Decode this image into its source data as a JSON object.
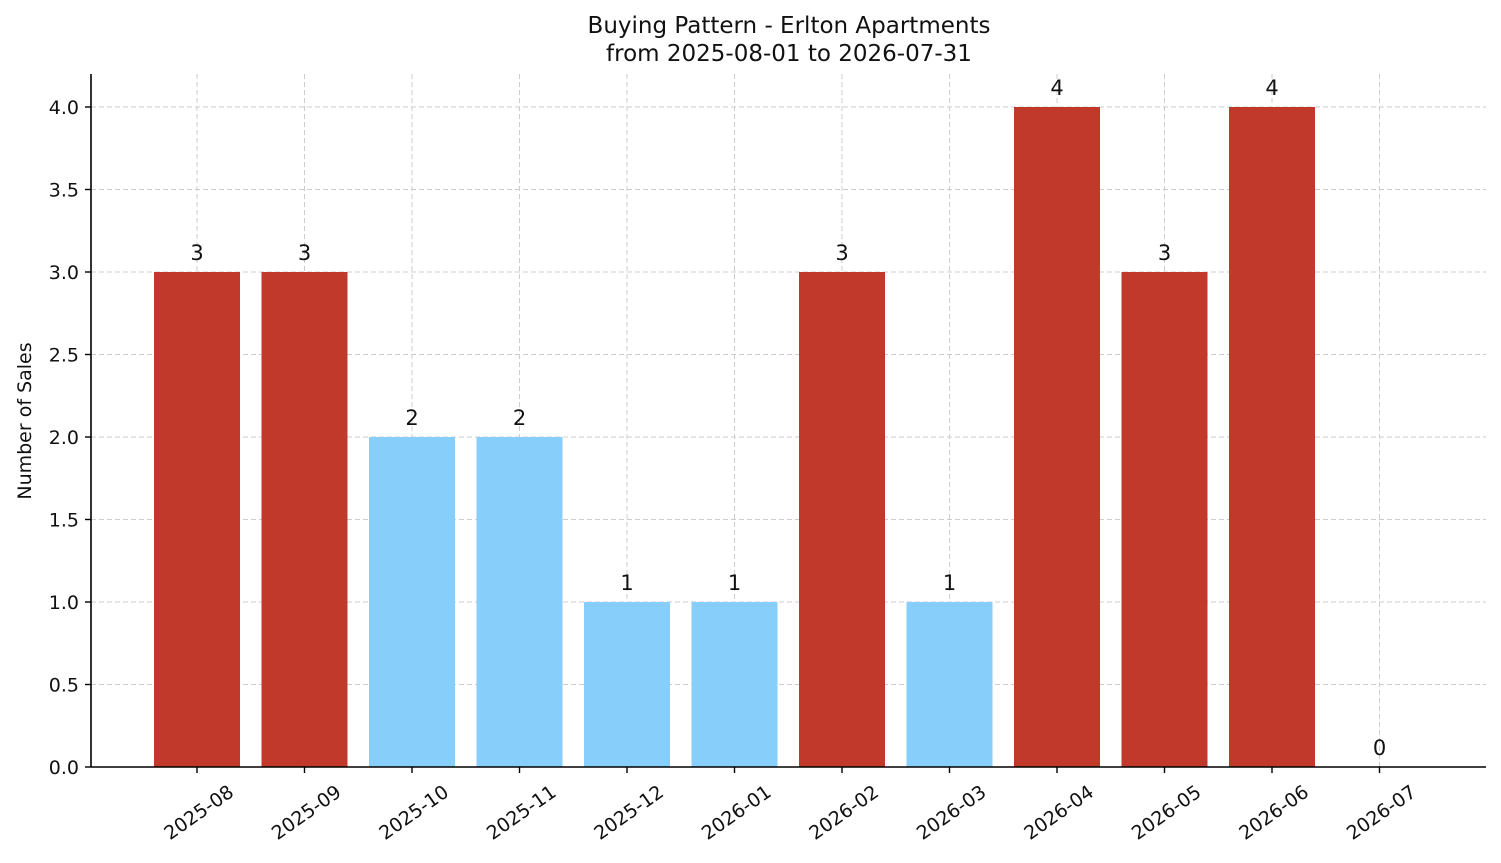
{
  "chart_data": {
    "type": "bar",
    "title": "Buying Pattern - Erlton Apartments",
    "subtitle": "from 2025-08-01 to 2026-07-31",
    "xlabel": "",
    "ylabel": "Number of Sales",
    "categories": [
      "2025-08",
      "2025-09",
      "2025-10",
      "2025-11",
      "2025-12",
      "2026-01",
      "2026-02",
      "2026-03",
      "2026-04",
      "2026-05",
      "2026-06",
      "2026-07"
    ],
    "values": [
      3,
      3,
      2,
      2,
      1,
      1,
      3,
      1,
      4,
      3,
      4,
      0
    ],
    "data_labels": [
      "3",
      "3",
      "2",
      "2",
      "1",
      "1",
      "3",
      "1",
      "4",
      "3",
      "4",
      "0"
    ],
    "ylim": [
      0,
      4.2
    ],
    "yticks": [
      "0.0",
      "0.5",
      "1.0",
      "1.5",
      "2.0",
      "2.5",
      "3.0",
      "3.5",
      "4.0"
    ],
    "grid": true,
    "colors": {
      "high": "#c0392b",
      "low": "#87cefa"
    },
    "high_threshold": 3
  }
}
